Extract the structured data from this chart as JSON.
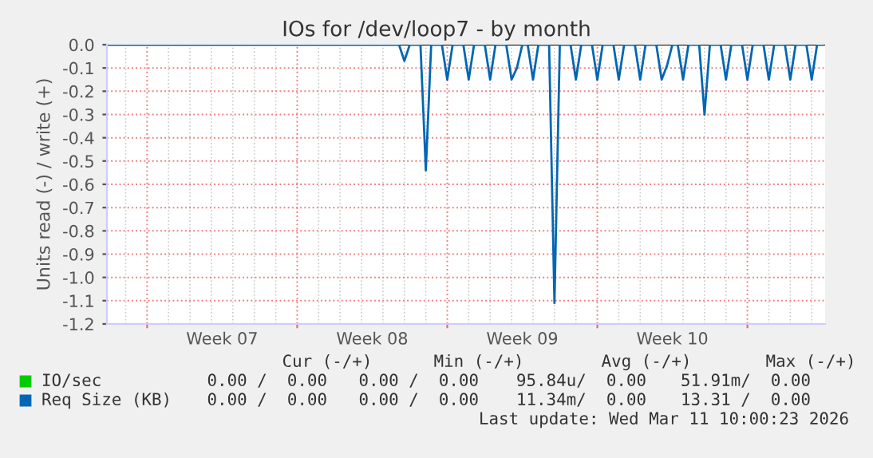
{
  "chart_data": {
    "type": "line",
    "title": "IOs for /dev/loop7 - by month",
    "ylabel": "Units read (-) / write (+)",
    "ylim": [
      -1.2,
      0.0
    ],
    "yticks": [
      {
        "value": -1.2,
        "label": "-1.2"
      },
      {
        "value": -1.1,
        "label": "-1.1"
      },
      {
        "value": -1.0,
        "label": "-1.0"
      },
      {
        "value": -0.9,
        "label": "-0.9"
      },
      {
        "value": -0.8,
        "label": "-0.8"
      },
      {
        "value": -0.7,
        "label": "-0.7"
      },
      {
        "value": -0.6,
        "label": "-0.6"
      },
      {
        "value": -0.5,
        "label": "-0.5"
      },
      {
        "value": -0.4,
        "label": "-0.4"
      },
      {
        "value": -0.3,
        "label": "-0.3"
      },
      {
        "value": -0.2,
        "label": "-0.2"
      },
      {
        "value": -0.1,
        "label": "-0.1"
      },
      {
        "value": 0.0,
        "label": "0.0"
      }
    ],
    "categories": [
      null,
      null,
      null,
      null,
      null,
      null,
      null,
      null,
      null,
      null,
      null,
      null,
      null,
      null,
      null,
      null,
      null,
      null,
      null,
      null,
      null,
      "Week 07",
      null,
      null,
      null,
      null,
      null,
      null,
      null,
      null,
      null,
      null,
      null,
      null,
      null,
      null,
      null,
      null,
      null,
      null,
      null,
      null,
      null,
      null,
      null,
      null,
      null,
      null,
      null,
      "Week 08",
      null,
      null,
      null,
      null,
      null,
      null,
      null,
      null,
      null,
      null,
      null,
      null,
      null,
      null,
      null,
      null,
      null,
      null,
      null,
      null,
      null,
      null,
      null,
      null,
      null,
      null,
      null,
      "Week 09",
      null,
      null,
      null,
      null,
      null,
      null,
      null,
      null,
      null,
      null,
      null,
      null,
      null,
      null,
      null,
      null,
      null,
      null,
      null,
      null,
      null,
      null,
      null,
      null,
      null,
      null,
      null,
      "Week 10",
      null,
      null,
      null,
      null,
      null,
      null,
      null,
      null,
      null,
      null,
      null,
      null,
      null,
      null,
      null,
      null,
      null,
      null,
      null,
      null,
      null,
      null,
      null,
      null,
      null,
      null,
      null,
      null
    ],
    "grid": true,
    "legend": "bottom left",
    "ref_lines": [
      {
        "axis": "y",
        "value": 0.0,
        "color": "#000000"
      }
    ],
    "series": [
      {
        "name": "IO/sec",
        "color": "#00cc00",
        "values": [
          null,
          null,
          null,
          null,
          null,
          null,
          null,
          null,
          null,
          null,
          null,
          null,
          null,
          null,
          null,
          null,
          null,
          null,
          null,
          null,
          null,
          null,
          null,
          null,
          null,
          null,
          null,
          null,
          null,
          null,
          null,
          null,
          null,
          null,
          null,
          null,
          null,
          null,
          null,
          null,
          null,
          null,
          null,
          null,
          null,
          null,
          null,
          null,
          null,
          null,
          null,
          null,
          null,
          null,
          null,
          null,
          null,
          null,
          null,
          null,
          null,
          null,
          null,
          null,
          null,
          null,
          null,
          null,
          null,
          null,
          null,
          null,
          null,
          null,
          null,
          null,
          null,
          null,
          null,
          null,
          null,
          null,
          null,
          null,
          null,
          null,
          null,
          null,
          null,
          null,
          null,
          null,
          null,
          null,
          null,
          null,
          null,
          null,
          null,
          null,
          null,
          null,
          null,
          null,
          null,
          null,
          null,
          null,
          null,
          null,
          null,
          null,
          null,
          null,
          null,
          null,
          null,
          null,
          null,
          null,
          null,
          null,
          null,
          null,
          null,
          null,
          null,
          null,
          null,
          null,
          null,
          null,
          null,
          null
        ]
      },
      {
        "name": "Req Size (KB)",
        "color": "#0066b3",
        "values": [
          0,
          0,
          0,
          0,
          0,
          0,
          0,
          0,
          0,
          0,
          0,
          0,
          0,
          0,
          0,
          0,
          0,
          0,
          0,
          0,
          0,
          0,
          0,
          0,
          0,
          0,
          0,
          0,
          0,
          0,
          0,
          0,
          0,
          0,
          0,
          0,
          0,
          0,
          0,
          0,
          0,
          0,
          0,
          0,
          0,
          0,
          0,
          0,
          0,
          0,
          0,
          0,
          0,
          0,
          0,
          -0.07,
          0,
          0,
          0,
          -0.54,
          0,
          0,
          0,
          -0.15,
          0,
          0,
          0,
          -0.15,
          0,
          0,
          0,
          -0.15,
          0,
          0,
          0,
          -0.15,
          -0.1,
          0,
          0,
          -0.15,
          0,
          0,
          0,
          -1.11,
          0,
          0,
          0,
          -0.15,
          0,
          0,
          0,
          -0.15,
          0,
          0,
          0,
          -0.15,
          0,
          0,
          0,
          -0.15,
          0,
          0,
          0,
          -0.15,
          -0.09,
          0,
          0,
          -0.15,
          0,
          0,
          0,
          -0.3,
          0,
          0,
          0,
          -0.15,
          0,
          0,
          0,
          -0.15,
          0,
          0,
          0,
          -0.15,
          0,
          0,
          0,
          -0.15,
          0,
          0,
          0,
          -0.15,
          0,
          0
        ]
      }
    ],
    "annotations": [
      "Cur (-/+)",
      "Min (-/+)",
      "Avg (-/+)",
      "Max (-/+)",
      "0.00 /  0.00",
      "0.00 /  0.00",
      "95.84u/  0.00",
      "51.91m/  0.00",
      "0.00 /  0.00",
      "0.00 /  0.00",
      "11.34m/  0.00",
      "13.31 /  0.00",
      "Last update: Wed Mar 11 10:00:23 2026"
    ]
  }
}
